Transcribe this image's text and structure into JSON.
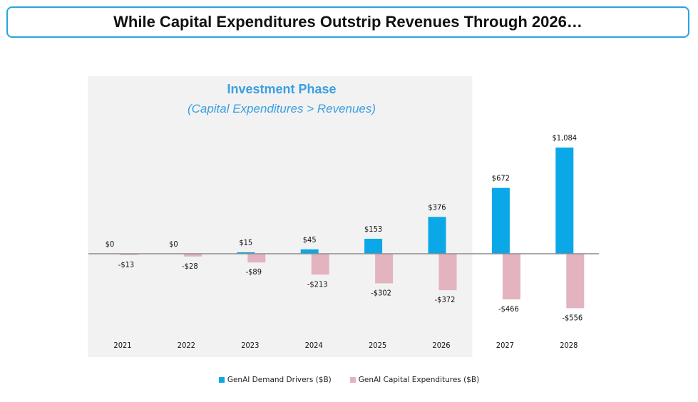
{
  "header": {
    "title": "While Capital Expenditures Outstrip Revenues Through 2026…"
  },
  "phase": {
    "title": "Investment Phase",
    "subtitle": "(Capital Expenditures > Revenues)"
  },
  "colors": {
    "demand": "#0aa8e6",
    "capex": "#e3b3bf",
    "phase_bg": "#f2f2f2",
    "axis": "#8c8c8c"
  },
  "legend": [
    {
      "label": "GenAI Demand Drivers ($B)",
      "color": "#0aa8e6"
    },
    {
      "label": "GenAI Capital Expenditures ($B)",
      "color": "#e3b3bf"
    }
  ],
  "chart_data": {
    "type": "bar",
    "categories": [
      "2021",
      "2022",
      "2023",
      "2024",
      "2025",
      "2026",
      "2027",
      "2028"
    ],
    "series": [
      {
        "name": "GenAI Demand Drivers ($B)",
        "values": [
          0,
          0,
          15,
          45,
          153,
          376,
          672,
          1084
        ],
        "labels": [
          "$0",
          "$0",
          "$15",
          "$45",
          "$153",
          "$376",
          "$672",
          "$1,084"
        ]
      },
      {
        "name": "GenAI Capital Expenditures ($B)",
        "values": [
          -13,
          -28,
          -89,
          -213,
          -302,
          -372,
          -466,
          -556
        ],
        "labels": [
          "-$13",
          "-$28",
          "-$89",
          "-$213",
          "-$302",
          "-$372",
          "-$466",
          "-$556"
        ]
      }
    ],
    "shaded_region": [
      "2021",
      "2026"
    ],
    "grid": false,
    "legend_position": "bottom"
  }
}
